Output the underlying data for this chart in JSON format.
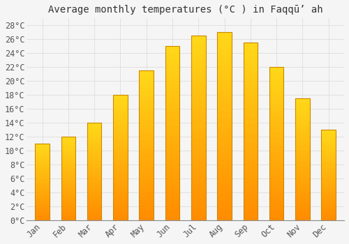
{
  "months": [
    "Jan",
    "Feb",
    "Mar",
    "Apr",
    "May",
    "Jun",
    "Jul",
    "Aug",
    "Sep",
    "Oct",
    "Nov",
    "Dec"
  ],
  "values": [
    11,
    12,
    14,
    18,
    21.5,
    25,
    26.5,
    27,
    25.5,
    22,
    17.5,
    13
  ],
  "title": "Average monthly temperatures (°C ) in Faqqūʼ ah",
  "ylim": [
    0,
    29
  ],
  "yticks": [
    0,
    2,
    4,
    6,
    8,
    10,
    12,
    14,
    16,
    18,
    20,
    22,
    24,
    26,
    28
  ],
  "bar_color_main": "#FFAA00",
  "bar_color_light": "#FFCC44",
  "bar_edge_color": "#CC8800",
  "background_color": "#f5f5f5",
  "grid_color": "#dddddd",
  "title_fontsize": 10,
  "tick_fontsize": 8.5,
  "bar_width": 0.55
}
